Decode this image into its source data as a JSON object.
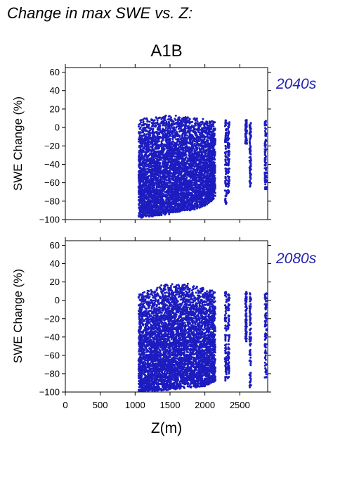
{
  "title": "Change in max SWE vs. Z:",
  "scenario": "A1B",
  "colors": {
    "points": "#1c1cc0",
    "period_label": "#2323b0",
    "axis": "#000000"
  },
  "chart_data": [
    {
      "type": "scatter",
      "period": "2040s",
      "xlabel": "",
      "ylabel": "SWE Change (%)",
      "xlim": [
        0,
        2900
      ],
      "ylim": [
        -100,
        65
      ],
      "xticks": [
        0,
        500,
        1000,
        1500,
        2000,
        2500
      ],
      "yticks": [
        -100,
        -80,
        -60,
        -40,
        -20,
        0,
        20,
        40,
        60
      ],
      "grid": false,
      "envelope": {
        "x": [
          1050,
          1100,
          1200,
          1300,
          1400,
          1500,
          1550,
          1600,
          1700,
          1800,
          1900,
          2000,
          2100,
          2150
        ],
        "y_max": [
          8,
          10,
          11,
          12,
          13,
          14,
          15,
          13,
          12,
          11,
          10,
          9,
          8,
          7
        ],
        "y_min": [
          -98,
          -98,
          -97,
          -96,
          -95,
          -94,
          -92,
          -92,
          -90,
          -90,
          -88,
          -85,
          -80,
          -75
        ]
      },
      "isolated_columns": [
        {
          "x": 2300,
          "y_min": -85,
          "y_max": 8
        },
        {
          "x": 2340,
          "y_min": -75,
          "y_max": 6
        },
        {
          "x": 2590,
          "y_min": -18,
          "y_max": 8
        },
        {
          "x": 2650,
          "y_min": -65,
          "y_max": 5
        },
        {
          "x": 2870,
          "y_min": -70,
          "y_max": 8
        }
      ]
    },
    {
      "type": "scatter",
      "period": "2080s",
      "xlabel": "Z(m)",
      "ylabel": "SWE Change (%)",
      "xlim": [
        0,
        2900
      ],
      "ylim": [
        -100,
        65
      ],
      "xticks": [
        0,
        500,
        1000,
        1500,
        2000,
        2500
      ],
      "yticks": [
        -100,
        -80,
        -60,
        -40,
        -20,
        0,
        20,
        40,
        60
      ],
      "grid": false,
      "envelope": {
        "x": [
          1050,
          1100,
          1200,
          1300,
          1400,
          1500,
          1550,
          1600,
          1700,
          1800,
          1900,
          2000,
          2100,
          2150
        ],
        "y_max": [
          10,
          11,
          12,
          14,
          17,
          19,
          20,
          20,
          19,
          18,
          15,
          13,
          12,
          10
        ],
        "y_min": [
          -100,
          -100,
          -99,
          -99,
          -98,
          -98,
          -97,
          -97,
          -96,
          -95,
          -95,
          -94,
          -90,
          -88
        ]
      },
      "isolated_columns": [
        {
          "x": 2300,
          "y_min": -90,
          "y_max": 10
        },
        {
          "x": 2340,
          "y_min": -88,
          "y_max": 8
        },
        {
          "x": 2590,
          "y_min": -45,
          "y_max": 10
        },
        {
          "x": 2650,
          "y_min": -95,
          "y_max": 8
        },
        {
          "x": 2870,
          "y_min": -85,
          "y_max": 10
        }
      ]
    }
  ]
}
